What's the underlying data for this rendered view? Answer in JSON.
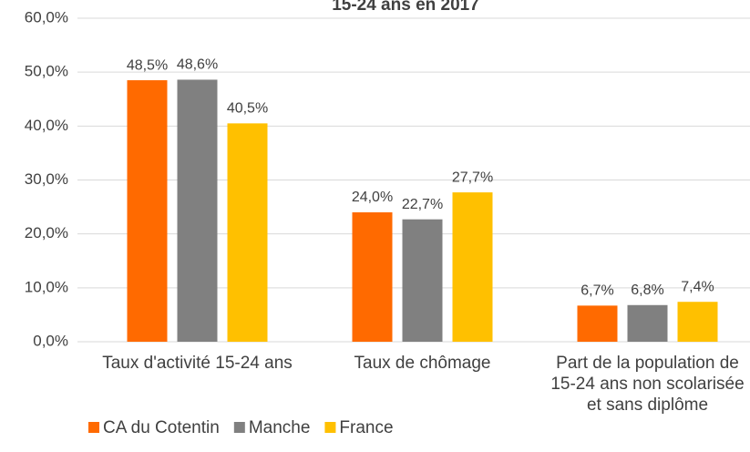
{
  "chart_data": {
    "type": "bar",
    "title": "15-24 ans en 2017",
    "categories": [
      "Taux d'activité 15-24 ans",
      "Taux de chômage",
      "Part de la population de 15-24 ans non scolarisée et sans diplôme"
    ],
    "series": [
      {
        "name": "CA du Cotentin",
        "color": "#ff6a00",
        "values": [
          48.5,
          24.0,
          6.7
        ],
        "value_labels": [
          "48,5%",
          "24,0%",
          "6,7%"
        ]
      },
      {
        "name": "Manche",
        "color": "#808080",
        "values": [
          48.6,
          22.7,
          6.8
        ],
        "value_labels": [
          "48,6%",
          "22,7%",
          "6,8%"
        ]
      },
      {
        "name": "France",
        "color": "#ffc000",
        "values": [
          40.5,
          27.7,
          7.4
        ],
        "value_labels": [
          "40,5%",
          "27,7%",
          "7,4%"
        ]
      }
    ],
    "ylim": [
      0,
      60
    ],
    "yticks": [
      {
        "value": 0,
        "label": "0,0%"
      },
      {
        "value": 10,
        "label": "10,0%"
      },
      {
        "value": 20,
        "label": "20,0%"
      },
      {
        "value": 30,
        "label": "30,0%"
      },
      {
        "value": 40,
        "label": "40,0%"
      },
      {
        "value": 50,
        "label": "50,0%"
      },
      {
        "value": 60,
        "label": "60,0%"
      }
    ],
    "grid": true,
    "legend": "bottom-left"
  }
}
